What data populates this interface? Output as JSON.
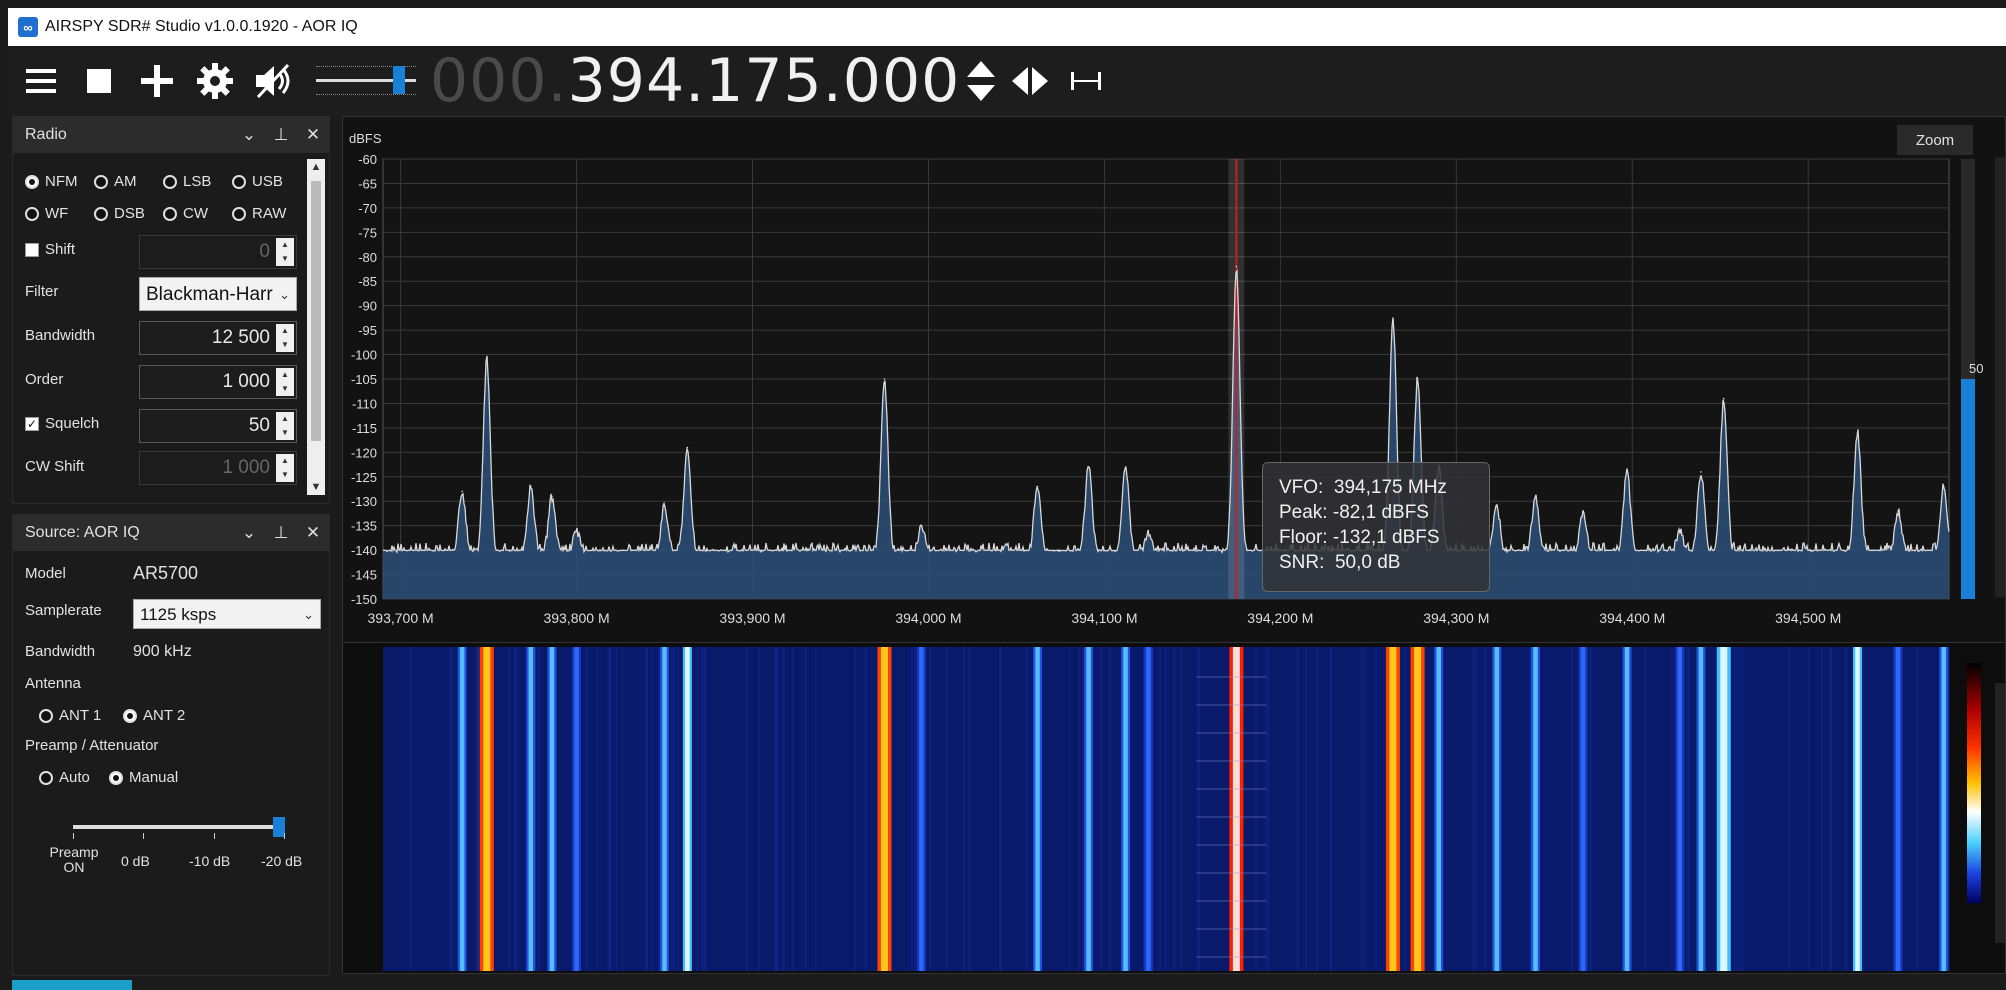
{
  "window": {
    "title": "AIRSPY SDR# Studio v1.0.0.1920 - AOR IQ"
  },
  "toolbar": {
    "menu_icon": "hamburger-menu-icon",
    "stop_icon": "stop-icon",
    "add_icon": "plus-icon",
    "settings_icon": "gear-icon",
    "mute_icon": "speaker-muted-icon",
    "freq_dim": "000.",
    "freq_bright": "394.175.000",
    "volume_level": 0.88
  },
  "radio_panel": {
    "title": "Radio",
    "modes_row1": [
      "NFM",
      "AM",
      "LSB",
      "USB"
    ],
    "modes_row2": [
      "WF",
      "DSB",
      "CW",
      "RAW"
    ],
    "selected_mode": "NFM",
    "shift_label": "Shift",
    "shift_value": "0",
    "filter_label": "Filter",
    "filter_value": "Blackman-Harr",
    "bandwidth_label": "Bandwidth",
    "bandwidth_value": "12 500",
    "order_label": "Order",
    "order_value": "1 000",
    "squelch_label": "Squelch",
    "squelch_value": "50",
    "cwshift_label": "CW Shift",
    "cwshift_value": "1 000"
  },
  "source_panel": {
    "title": "Source: AOR IQ",
    "model_label": "Model",
    "model_value": "AR5700",
    "samplerate_label": "Samplerate",
    "samplerate_value": "1125 ksps",
    "bandwidth_label": "Bandwidth",
    "bandwidth_value": "900 kHz",
    "antenna_label": "Antenna",
    "antenna_options": [
      "ANT 1",
      "ANT 2"
    ],
    "antenna_selected": "ANT 2",
    "preamp_label": "Preamp / Attenuator",
    "preamp_options": [
      "Auto",
      "Manual"
    ],
    "preamp_selected": "Manual",
    "att_ticks": [
      "Preamp\nON",
      "0 dB",
      "-10 dB",
      "-20 dB"
    ],
    "att_level": 1.0
  },
  "spectrum": {
    "ylabel": "dBFS",
    "zoom_label": "Zoom",
    "y_ticks": [
      "-60",
      "-65",
      "-70",
      "-75",
      "-80",
      "-85",
      "-90",
      "-95",
      "-100",
      "-105",
      "-110",
      "-115",
      "-120",
      "-125",
      "-130",
      "-135",
      "-140",
      "-145",
      "-150"
    ],
    "x_ticks": [
      "393,700 M",
      "393,800 M",
      "393,900 M",
      "394,000 M",
      "394,100 M",
      "394,200 M",
      "394,300 M",
      "394,400 M",
      "394,500 M"
    ],
    "contrast_value": "50",
    "tooltip": {
      "vfo_label": "VFO:",
      "vfo_value": "394,175 MHz",
      "peak_label": "Peak:",
      "peak_value": "-82,1 dBFS",
      "floor_label": "Floor:",
      "floor_value": "-132,1 dBFS",
      "snr_label": "SNR:",
      "snr_value": "50,0 dB"
    }
  },
  "chart_data": {
    "type": "line",
    "xlabel": "",
    "ylabel": "dBFS",
    "xlim": [
      393.69,
      394.58
    ],
    "ylim": [
      -150,
      -60
    ],
    "noise_floor": -141,
    "peaks_mhz": [
      393.735,
      393.749,
      393.774,
      393.786,
      393.8,
      393.85,
      393.863,
      393.975,
      393.996,
      394.062,
      394.091,
      394.112,
      394.125,
      394.175,
      394.264,
      394.278,
      394.29,
      394.323,
      394.345,
      394.372,
      394.397,
      394.427,
      394.439,
      394.452,
      394.528,
      394.551,
      394.577
    ],
    "peaks_dbfs": [
      -128,
      -101,
      -127,
      -129,
      -136,
      -131,
      -119,
      -105,
      -135,
      -127,
      -123,
      -123,
      -136,
      -82,
      -93,
      -105,
      -123,
      -131,
      -129,
      -132,
      -124,
      -136,
      -124,
      -109,
      -116,
      -132,
      -127
    ]
  },
  "colors": {
    "accent": "#1a7fd6",
    "trace": "#d8d8d8",
    "fill": "#2b4f78",
    "vfo": "#c02020"
  }
}
